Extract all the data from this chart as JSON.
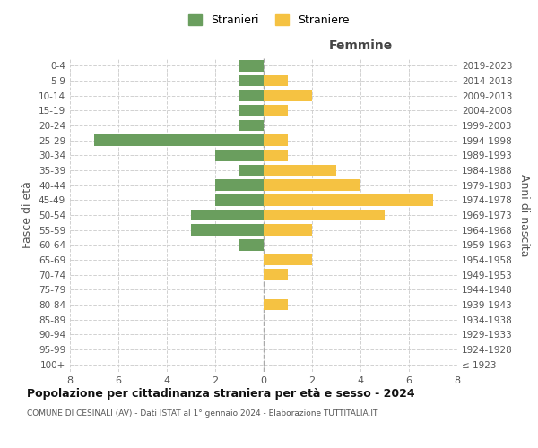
{
  "age_groups": [
    "100+",
    "95-99",
    "90-94",
    "85-89",
    "80-84",
    "75-79",
    "70-74",
    "65-69",
    "60-64",
    "55-59",
    "50-54",
    "45-49",
    "40-44",
    "35-39",
    "30-34",
    "25-29",
    "20-24",
    "15-19",
    "10-14",
    "5-9",
    "0-4"
  ],
  "birth_years": [
    "≤ 1923",
    "1924-1928",
    "1929-1933",
    "1934-1938",
    "1939-1943",
    "1944-1948",
    "1949-1953",
    "1954-1958",
    "1959-1963",
    "1964-1968",
    "1969-1973",
    "1974-1978",
    "1979-1983",
    "1984-1988",
    "1989-1993",
    "1994-1998",
    "1999-2003",
    "2004-2008",
    "2009-2013",
    "2014-2018",
    "2019-2023"
  ],
  "males": [
    0,
    0,
    0,
    0,
    0,
    0,
    0,
    0,
    1,
    3,
    3,
    2,
    2,
    1,
    2,
    7,
    1,
    1,
    1,
    1,
    1
  ],
  "females": [
    0,
    0,
    0,
    0,
    1,
    0,
    1,
    2,
    0,
    2,
    5,
    7,
    4,
    3,
    1,
    1,
    0,
    1,
    2,
    1,
    0
  ],
  "male_color": "#6a9e5e",
  "female_color": "#f5c242",
  "grid_color": "#cccccc",
  "title": "Popolazione per cittadinanza straniera per età e sesso - 2024",
  "subtitle": "COMUNE DI CESINALI (AV) - Dati ISTAT al 1° gennaio 2024 - Elaborazione TUTTITALIA.IT",
  "xlabel_right": "Femmine",
  "ylabel_left": "Fasce di età",
  "ylabel_right": "Anni di nascita",
  "legend_stranieri": "Stranieri",
  "legend_straniere": "Straniere",
  "xlim": 8,
  "bar_height": 0.75
}
